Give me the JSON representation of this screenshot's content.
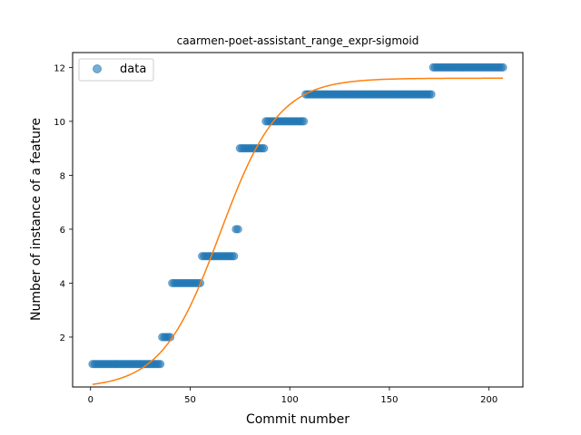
{
  "chart_data": {
    "type": "scatter",
    "title": "caarmen-poet-assistant_range_expr-sigmoid",
    "xlabel": "Commit number",
    "ylabel": "Number of instance of a feature",
    "xlim": [
      -9,
      217
    ],
    "ylim": [
      0.15,
      12.55
    ],
    "xticks": [
      0,
      50,
      100,
      150,
      200
    ],
    "yticks": [
      2,
      4,
      6,
      8,
      10,
      12
    ],
    "grid": false,
    "legend": {
      "position": "top-left",
      "entries": [
        "data"
      ]
    },
    "colors": {
      "points": "#1f77b4",
      "curve": "#ff7f0e"
    },
    "series": [
      {
        "name": "data",
        "kind": "points",
        "segments": [
          {
            "x_from": 1,
            "x_to": 35,
            "y": 1
          },
          {
            "x_from": 36,
            "x_to": 40,
            "y": 2
          },
          {
            "x_from": 41,
            "x_to": 55,
            "y": 4
          },
          {
            "x_from": 56,
            "x_to": 72,
            "y": 5
          },
          {
            "x_from": 73,
            "x_to": 74,
            "y": 6
          },
          {
            "x_from": 75,
            "x_to": 87,
            "y": 9
          },
          {
            "x_from": 88,
            "x_to": 107,
            "y": 10
          },
          {
            "x_from": 108,
            "x_to": 171,
            "y": 11
          },
          {
            "x_from": 172,
            "x_to": 207,
            "y": 12
          }
        ]
      },
      {
        "kind": "sigmoid-fit",
        "params": {
          "L": 11.5,
          "k": 0.068,
          "x0": 65,
          "base": 0.1
        },
        "x_range": [
          1,
          207
        ]
      }
    ]
  }
}
